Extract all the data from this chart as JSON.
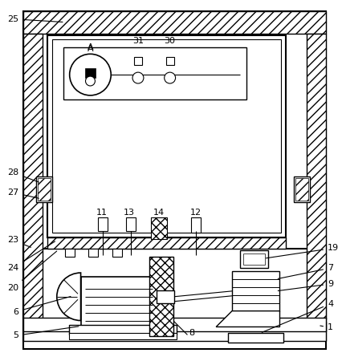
{
  "bg_color": "#ffffff",
  "line_color": "#000000",
  "fig_width": 4.26,
  "fig_height": 4.5,
  "dpi": 100
}
